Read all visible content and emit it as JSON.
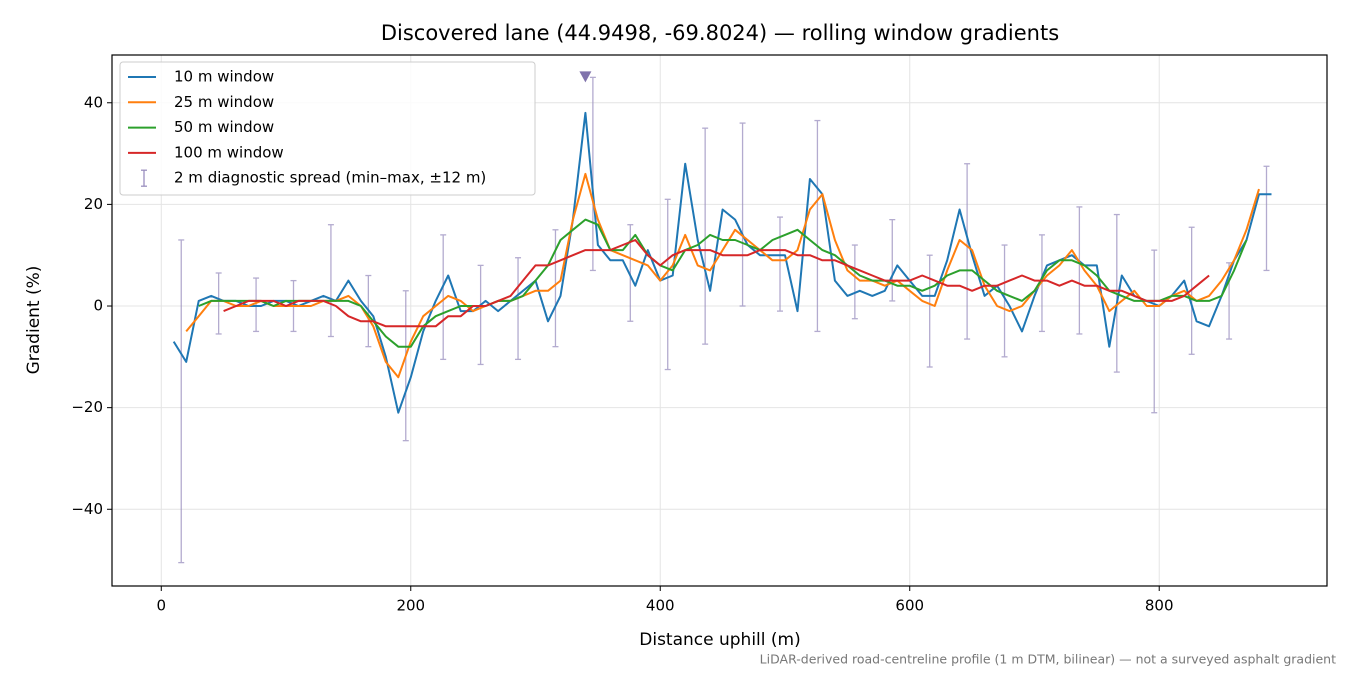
{
  "chart_data": {
    "type": "line",
    "title": "Discovered lane (44.9498, -69.8024) — rolling window gradients",
    "xlabel": "Distance uphill (m)",
    "ylabel": "Gradient (%)",
    "footnote": "LiDAR-derived road-centreline profile (1 m DTM, bilinear) — not a surveyed asphalt gradient",
    "xlim": [
      -39.5,
      934.5
    ],
    "ylim": [
      -55.1,
      49.4
    ],
    "xticks": [
      0,
      200,
      400,
      600,
      800
    ],
    "yticks": [
      {
        "value": -40,
        "label": "−40"
      },
      {
        "value": -20,
        "label": "−20"
      },
      0,
      20,
      40
    ],
    "grid": true,
    "legend": "upper left",
    "x": [
      10,
      20,
      30,
      40,
      50,
      60,
      70,
      80,
      90,
      100,
      110,
      120,
      130,
      140,
      150,
      160,
      170,
      180,
      190,
      200,
      210,
      220,
      230,
      240,
      250,
      260,
      270,
      280,
      290,
      300,
      310,
      320,
      330,
      340,
      350,
      360,
      370,
      380,
      390,
      400,
      410,
      420,
      430,
      440,
      450,
      460,
      470,
      480,
      490,
      500,
      510,
      520,
      530,
      540,
      550,
      560,
      570,
      580,
      590,
      600,
      610,
      620,
      630,
      640,
      650,
      660,
      670,
      680,
      690,
      700,
      710,
      720,
      730,
      740,
      750,
      760,
      770,
      780,
      790,
      800,
      810,
      820,
      830,
      840,
      850,
      860,
      870,
      880,
      890
    ],
    "series": [
      {
        "name": "10 m window",
        "color": "#1f77b4",
        "values": [
          -7,
          -11,
          1,
          2,
          1,
          1,
          0,
          0,
          1,
          1,
          0,
          1,
          2,
          1,
          5,
          1,
          -2,
          -10,
          -21,
          -14,
          -5,
          1,
          6,
          -1,
          -1,
          1,
          -1,
          1,
          3,
          5,
          -3,
          2,
          17,
          38,
          12,
          9,
          9,
          4,
          11,
          5,
          6,
          28,
          13,
          3,
          19,
          17,
          12,
          10,
          10,
          10,
          -1,
          25,
          22,
          5,
          2,
          3,
          2,
          3,
          8,
          5,
          2,
          2,
          9,
          19,
          10,
          2,
          4,
          0,
          -5,
          2,
          8,
          9,
          10,
          8,
          8,
          -8,
          6,
          2,
          1,
          0,
          2,
          5,
          -3,
          -4,
          2,
          9,
          13,
          22,
          22
        ]
      },
      {
        "name": "25 m window",
        "color": "#ff7f0e",
        "values": [
          null,
          -5,
          -2,
          1,
          1,
          0,
          0,
          1,
          0,
          0,
          0,
          0,
          1,
          1,
          2,
          0,
          -4,
          -11,
          -14,
          -7,
          -2,
          0,
          2,
          1,
          -1,
          0,
          1,
          1,
          2,
          3,
          3,
          5,
          17,
          26,
          17,
          11,
          10,
          9,
          8,
          5,
          8,
          14,
          8,
          7,
          11,
          15,
          13,
          11,
          9,
          9,
          11,
          19,
          22,
          13,
          7,
          5,
          5,
          4,
          5,
          3,
          1,
          0,
          7,
          13,
          11,
          4,
          0,
          -1,
          0,
          3,
          6,
          8,
          11,
          7,
          4,
          -1,
          1,
          3,
          0,
          0,
          2,
          3,
          1,
          2,
          5,
          9,
          15,
          23,
          null
        ]
      },
      {
        "name": "50 m window",
        "color": "#2ca02c",
        "values": [
          null,
          null,
          0,
          1,
          1,
          1,
          1,
          1,
          0,
          1,
          1,
          1,
          1,
          1,
          1,
          0,
          -3,
          -6,
          -8,
          -8,
          -4,
          -2,
          -1,
          0,
          0,
          0,
          1,
          1,
          2,
          5,
          8,
          13,
          15,
          17,
          16,
          11,
          11,
          14,
          10,
          8,
          7,
          11,
          12,
          14,
          13,
          13,
          12,
          11,
          13,
          14,
          15,
          13,
          11,
          10,
          8,
          6,
          5,
          5,
          4,
          4,
          3,
          4,
          6,
          7,
          7,
          5,
          3,
          2,
          1,
          3,
          7,
          9,
          9,
          8,
          6,
          3,
          2,
          1,
          1,
          1,
          2,
          2,
          1,
          1,
          2,
          7,
          13,
          null,
          null
        ]
      },
      {
        "name": "100 m window",
        "color": "#d62728",
        "values": [
          null,
          null,
          null,
          null,
          -1,
          0,
          1,
          1,
          1,
          0,
          1,
          1,
          1,
          0,
          -2,
          -3,
          -3,
          -4,
          -4,
          -4,
          -4,
          -4,
          -2,
          -2,
          0,
          0,
          1,
          2,
          5,
          8,
          8,
          9,
          10,
          11,
          11,
          11,
          12,
          13,
          10,
          8,
          10,
          11,
          11,
          11,
          10,
          10,
          10,
          11,
          11,
          11,
          10,
          10,
          9,
          9,
          8,
          7,
          6,
          5,
          5,
          5,
          6,
          5,
          4,
          4,
          3,
          4,
          4,
          5,
          6,
          5,
          5,
          4,
          5,
          4,
          4,
          3,
          3,
          2,
          1,
          1,
          1,
          2,
          4,
          6,
          null,
          null,
          null,
          null,
          null
        ]
      }
    ],
    "error_bars": {
      "name": "2 m diagnostic spread (min–max, ±12 m)",
      "color": "#9a8fbf",
      "x": [
        16,
        46,
        76,
        106,
        136,
        166,
        196,
        226,
        256,
        286,
        316,
        346,
        376,
        406,
        436,
        466,
        496,
        526,
        556,
        586,
        616,
        646,
        676,
        706,
        736,
        766,
        796,
        826,
        856,
        886
      ],
      "low": [
        -50.5,
        -5.5,
        -5,
        -5,
        -6,
        -8,
        -26.5,
        -10.5,
        -11.5,
        -10.5,
        -8,
        7,
        -3,
        -12.5,
        -7.5,
        0,
        -1,
        -5,
        -2.5,
        1,
        -12,
        -6.5,
        -10,
        -5,
        -5.5,
        -13,
        -21,
        -9.5,
        -6.5,
        7
      ],
      "high": [
        13,
        6.5,
        5.5,
        5,
        16,
        6,
        3,
        14,
        8,
        9.5,
        15,
        45,
        16,
        21,
        35,
        36,
        17.5,
        36.5,
        12,
        17,
        10,
        28,
        12,
        14,
        19.5,
        18,
        11,
        15.5,
        8.5,
        27.5
      ],
      "markers": [
        {
          "x": 340,
          "y": 45,
          "color": "#8073ac"
        }
      ]
    }
  }
}
